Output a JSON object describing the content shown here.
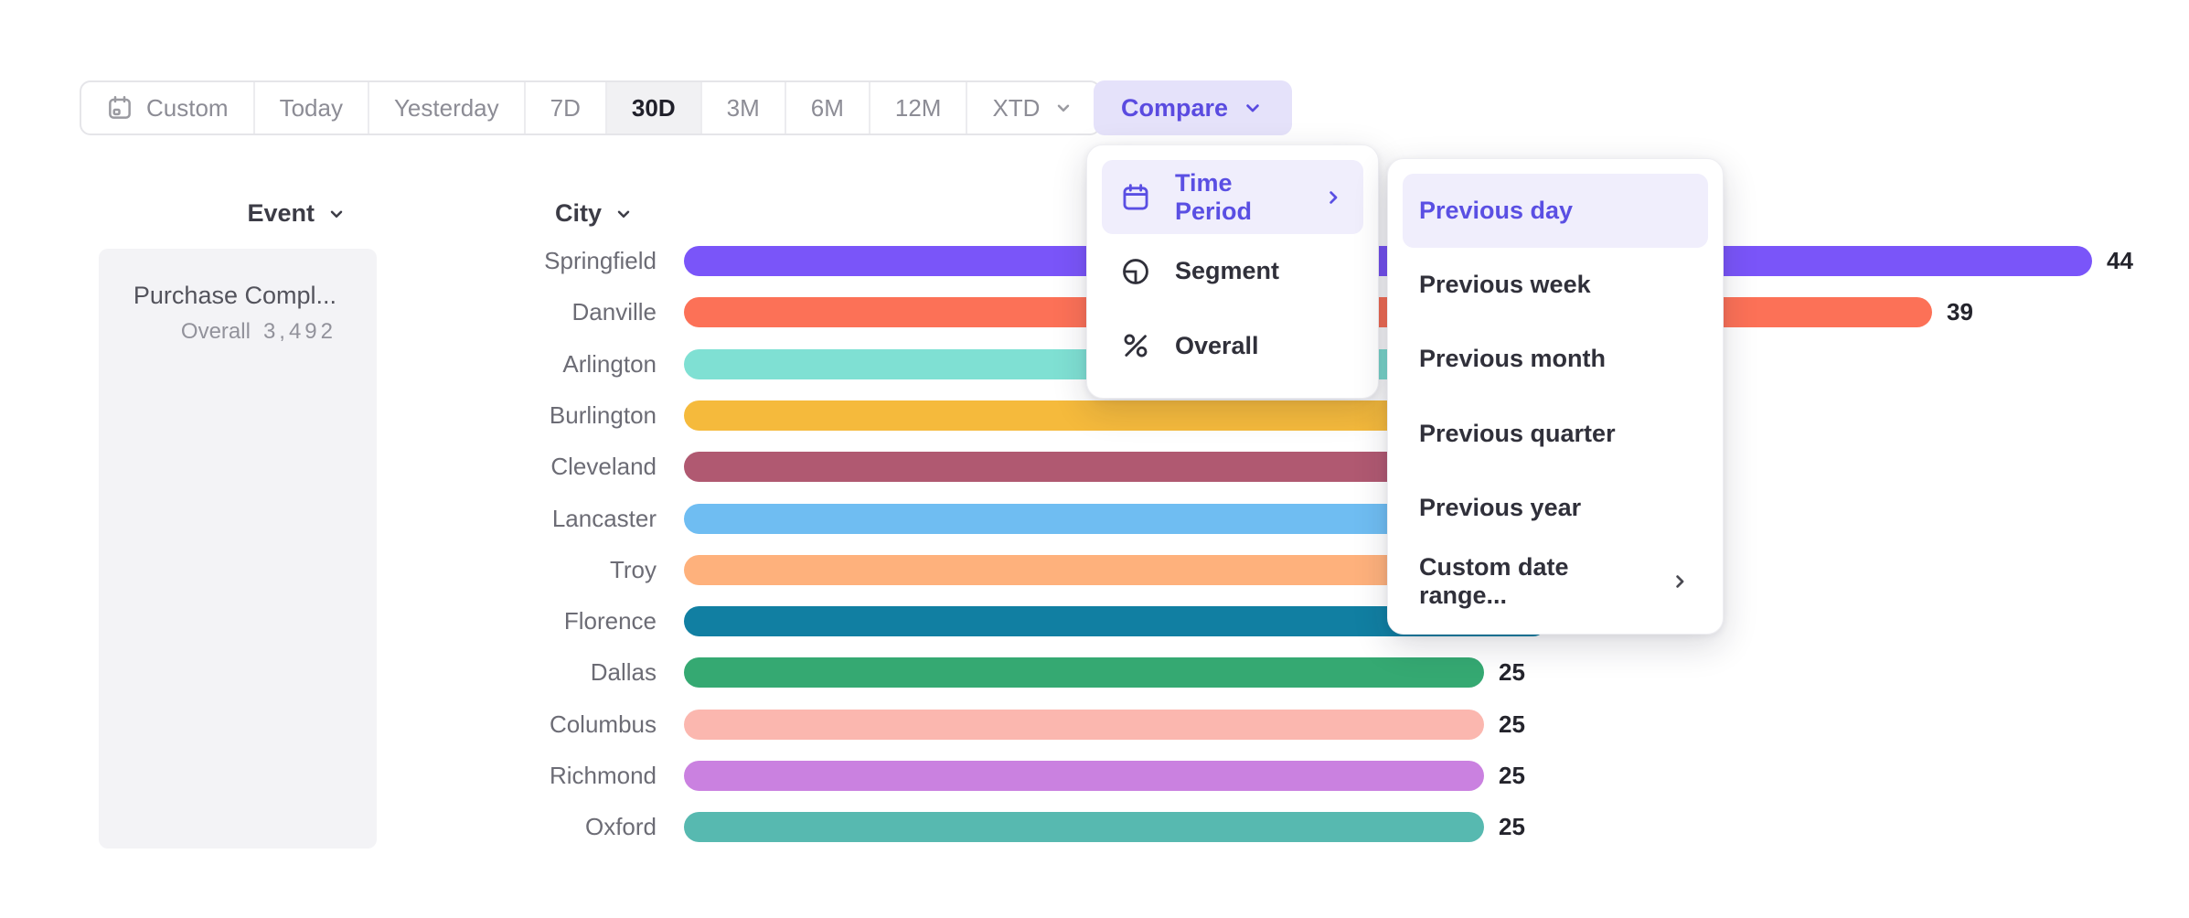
{
  "toolbar": {
    "segments": [
      {
        "label": "Custom",
        "icon": "calendar",
        "selected": false
      },
      {
        "label": "Today",
        "selected": false
      },
      {
        "label": "Yesterday",
        "selected": false
      },
      {
        "label": "7D",
        "selected": false
      },
      {
        "label": "30D",
        "selected": true
      },
      {
        "label": "3M",
        "selected": false
      },
      {
        "label": "6M",
        "selected": false
      },
      {
        "label": "12M",
        "selected": false
      },
      {
        "label": "XTD",
        "chevron": true,
        "selected": false
      }
    ],
    "compare": {
      "label": "Compare"
    }
  },
  "event_panel": {
    "header": "Event",
    "name": "Purchase Compl...",
    "overall_label": "Overall",
    "overall_value": "3,492"
  },
  "chart_data": {
    "type": "bar",
    "orientation": "horizontal",
    "dimension_label": "City",
    "categories": [
      "Springfield",
      "Danville",
      "Arlington",
      "Burlington",
      "Cleveland",
      "Lancaster",
      "Troy",
      "Florence",
      "Dallas",
      "Columbus",
      "Richmond",
      "Oxford"
    ],
    "values": [
      44,
      39,
      32,
      31,
      30,
      29,
      28,
      27,
      25,
      25,
      25,
      25
    ],
    "value_labels": [
      "44",
      "39",
      null,
      null,
      null,
      null,
      null,
      null,
      "25",
      "25",
      "25",
      "25"
    ],
    "bar_colors": [
      "#7A55F9",
      "#FC7157",
      "#7FE0D3",
      "#F5BA3C",
      "#B05971",
      "#6FBDF2",
      "#FEB17C",
      "#117FA2",
      "#35A972",
      "#FBB7AF",
      "#CA81E0",
      "#57B9B0"
    ],
    "xlim": [
      0,
      47
    ],
    "grid": false,
    "legend": "none",
    "note": "Bars sorted descending; numeric ends of Arlington through Florence are hidden behind the open Compare menus, values estimated."
  },
  "compare_menu": {
    "items": [
      {
        "label": "Time Period",
        "icon": "calendar",
        "highlighted": true,
        "has_submenu": true
      },
      {
        "label": "Segment",
        "icon": "segment",
        "highlighted": false,
        "has_submenu": false
      },
      {
        "label": "Overall",
        "icon": "percent",
        "highlighted": false,
        "has_submenu": false
      }
    ]
  },
  "time_period_menu": {
    "items": [
      {
        "label": "Previous day",
        "highlighted": true,
        "has_submenu": false
      },
      {
        "label": "Previous week",
        "highlighted": false,
        "has_submenu": false
      },
      {
        "label": "Previous month",
        "highlighted": false,
        "has_submenu": false
      },
      {
        "label": "Previous quarter",
        "highlighted": false,
        "has_submenu": false
      },
      {
        "label": "Previous year",
        "highlighted": false,
        "has_submenu": false
      },
      {
        "label": "Custom date range...",
        "highlighted": false,
        "has_submenu": true
      }
    ]
  },
  "colors": {
    "accent": "#5A4BE0",
    "accent_bg": "#E5E2FA",
    "menu_highlight_bg": "#F0EEFC",
    "menu_text": "#30303A",
    "toolbar_text": "#8C8C95",
    "label_text": "#6C6C75",
    "value_text": "#24242C"
  }
}
